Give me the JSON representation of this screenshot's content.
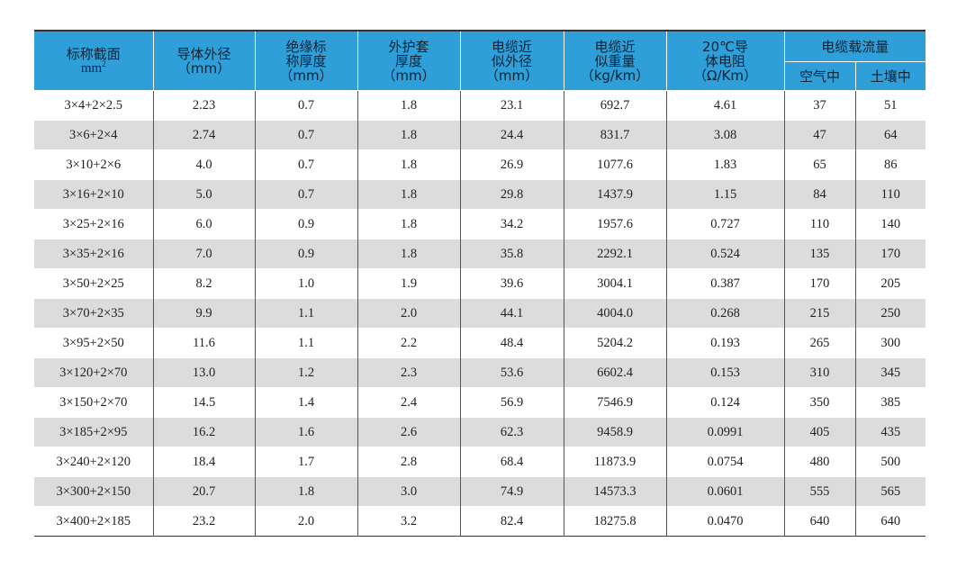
{
  "headers": {
    "spec": {
      "line1": "标称截面",
      "line2": "mm",
      "sup": "2"
    },
    "conductor_dia": {
      "line1": "导体外径",
      "line2": "（mm）"
    },
    "insulation": {
      "line1": "绝缘标",
      "line2": "称厚度",
      "line3": "（mm）"
    },
    "sheath": {
      "line1": "外护套",
      "line2": "厚度",
      "line3": "（mm）"
    },
    "outer_dia": {
      "line1": "电缆近",
      "line2": "似外径",
      "line3": "（mm）"
    },
    "weight": {
      "line1": "电缆近",
      "line2": "似重量",
      "line3": "（kg/km）"
    },
    "resistance": {
      "line1": "20℃导",
      "line2": "体电阻",
      "line3": "（Ω/Km）"
    },
    "ampacity": {
      "title": "电缆载流量",
      "air": "空气中",
      "soil": "土壤中"
    }
  },
  "rows": [
    [
      "3×4+2×2.5",
      "2.23",
      "0.7",
      "1.8",
      "23.1",
      "692.7",
      "4.61",
      "37",
      "51"
    ],
    [
      "3×6+2×4",
      "2.74",
      "0.7",
      "1.8",
      "24.4",
      "831.7",
      "3.08",
      "47",
      "64"
    ],
    [
      "3×10+2×6",
      "4.0",
      "0.7",
      "1.8",
      "26.9",
      "1077.6",
      "1.83",
      "65",
      "86"
    ],
    [
      "3×16+2×10",
      "5.0",
      "0.7",
      "1.8",
      "29.8",
      "1437.9",
      "1.15",
      "84",
      "110"
    ],
    [
      "3×25+2×16",
      "6.0",
      "0.9",
      "1.8",
      "34.2",
      "1957.6",
      "0.727",
      "110",
      "140"
    ],
    [
      "3×35+2×16",
      "7.0",
      "0.9",
      "1.8",
      "35.8",
      "2292.1",
      "0.524",
      "135",
      "170"
    ],
    [
      "3×50+2×25",
      "8.2",
      "1.0",
      "1.9",
      "39.6",
      "3004.1",
      "0.387",
      "170",
      "205"
    ],
    [
      "3×70+2×35",
      "9.9",
      "1.1",
      "2.0",
      "44.1",
      "4004.0",
      "0.268",
      "215",
      "250"
    ],
    [
      "3×95+2×50",
      "11.6",
      "1.1",
      "2.2",
      "48.4",
      "5204.2",
      "0.193",
      "265",
      "300"
    ],
    [
      "3×120+2×70",
      "13.0",
      "1.2",
      "2.3",
      "53.6",
      "6602.4",
      "0.153",
      "310",
      "345"
    ],
    [
      "3×150+2×70",
      "14.5",
      "1.4",
      "2.4",
      "56.9",
      "7546.9",
      "0.124",
      "350",
      "385"
    ],
    [
      "3×185+2×95",
      "16.2",
      "1.6",
      "2.6",
      "62.3",
      "9458.9",
      "0.0991",
      "405",
      "435"
    ],
    [
      "3×240+2×120",
      "18.4",
      "1.7",
      "2.8",
      "68.4",
      "11873.9",
      "0.0754",
      "480",
      "500"
    ],
    [
      "3×300+2×150",
      "20.7",
      "1.8",
      "3.0",
      "74.9",
      "14573.3",
      "0.0601",
      "555",
      "565"
    ],
    [
      "3×400+2×185",
      "23.2",
      "2.0",
      "3.2",
      "82.4",
      "18275.8",
      "0.0470",
      "640",
      "640"
    ]
  ]
}
